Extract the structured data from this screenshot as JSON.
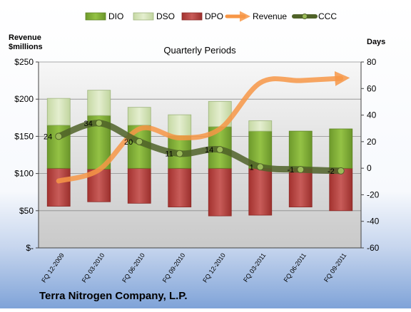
{
  "chart_data": {
    "type": "bar",
    "title": "Quarterly Periods",
    "company": "Terra Nitrogen Company, L.P.",
    "left_axis_title_line1": "Revenue",
    "left_axis_title_line2": "$millions",
    "right_axis_title": "Days",
    "categories": [
      "FQ 12-2009",
      "FQ 03-2010",
      "FQ 06-2010",
      "FQ 09-2010",
      "FQ 12-2010",
      "FQ 03-2011",
      "FQ 06-2011",
      "FQ 09-2011"
    ],
    "left_axis": {
      "min": 0,
      "max": 250,
      "ticks": [
        0,
        50,
        100,
        150,
        200,
        250
      ],
      "tick_labels": [
        "$-",
        "$50",
        "$100",
        "$150",
        "$200",
        "$250"
      ]
    },
    "right_axis": {
      "min": -60,
      "max": 80,
      "ticks": [
        -60,
        -40,
        -20,
        0,
        20,
        40,
        60,
        80
      ],
      "tick_labels": [
        "-60",
        "-40",
        "-20",
        "0",
        "20",
        "40",
        "60",
        "80"
      ]
    },
    "series": [
      {
        "name": "DPO",
        "color": "#c0504d",
        "range_bottom": [
          56,
          62,
          60,
          55,
          43,
          44,
          55,
          50
        ],
        "range_top": [
          107,
          106,
          107,
          107,
          107,
          107,
          107,
          107
        ]
      },
      {
        "name": "DIO",
        "color": "#8fbe3e",
        "range_bottom": [
          107,
          106,
          107,
          107,
          107,
          107,
          107,
          107
        ],
        "range_top": [
          165,
          178,
          165,
          151,
          163,
          157,
          157,
          160
        ]
      },
      {
        "name": "DSO",
        "color": "#d7e4bd",
        "range_bottom": [
          165,
          178,
          165,
          151,
          163,
          157,
          157,
          160
        ],
        "range_top": [
          201,
          212,
          189,
          179,
          197,
          171,
          157,
          160
        ]
      },
      {
        "name": "Revenue",
        "color": "#f79646",
        "axis": "left",
        "values": [
          90,
          105,
          160,
          148,
          160,
          222,
          225,
          228
        ]
      },
      {
        "name": "CCC",
        "color": "#4f6228",
        "axis": "right",
        "values": [
          24,
          34,
          20,
          11,
          14,
          1,
          -1,
          -2
        ]
      }
    ],
    "ccc_labels": [
      "24",
      "34",
      "20",
      "11",
      "14",
      "1",
      "-1",
      "-2"
    ],
    "legend_position": "top",
    "grid": true
  }
}
